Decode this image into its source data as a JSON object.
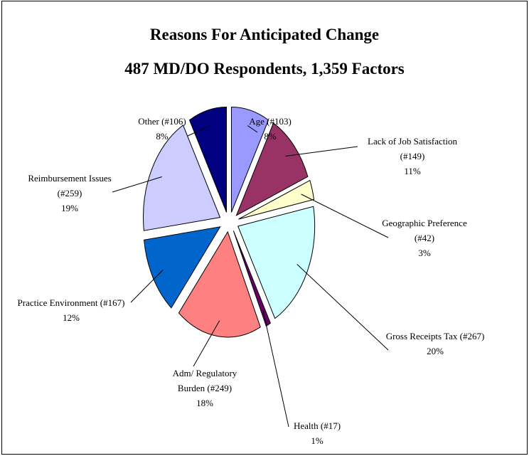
{
  "chart_data": {
    "type": "pie",
    "title": "Reasons For Anticipated Change",
    "subtitle": "487 MD/DO Respondents, 1,359 Factors",
    "categories": [
      "Age (#103)",
      "Lack of Job Satisfaction (#149)",
      "Geographic Preference (#42)",
      "Gross Receipts Tax (#267)",
      "Health (#17)",
      "Adm/ Regulatory Burden (#249)",
      "Practice Environment (#167)",
      "Reimbursement Issues (#259)",
      "Other (#106)"
    ],
    "values": [
      8,
      11,
      3,
      20,
      1,
      18,
      12,
      19,
      8
    ],
    "value_labels": [
      "8%",
      "11%",
      "3%",
      "20%",
      "1%",
      "18%",
      "12%",
      "19%",
      "8%"
    ],
    "colors": [
      "#9999ff",
      "#993366",
      "#ffffcc",
      "#ccffff",
      "#660066",
      "#ff8080",
      "#0066cc",
      "#ccccff",
      "#000080"
    ]
  }
}
